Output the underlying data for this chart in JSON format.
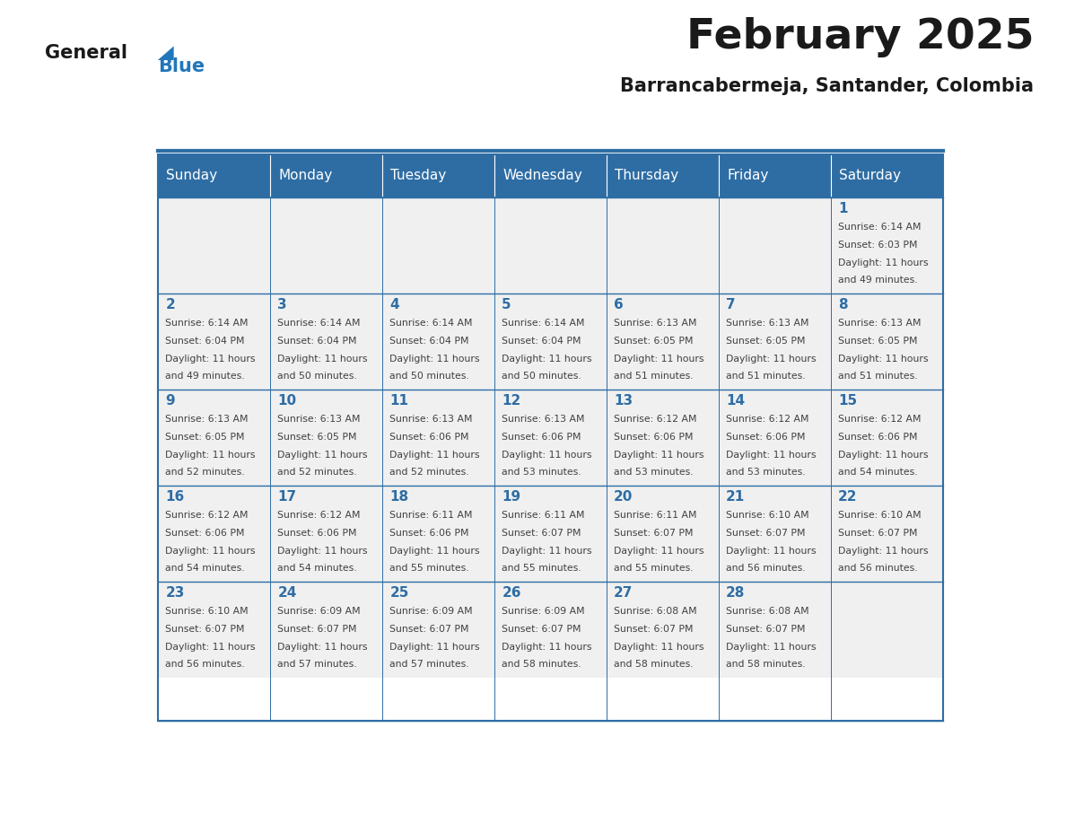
{
  "title": "February 2025",
  "subtitle": "Barrancabermeja, Santander, Colombia",
  "header_bg": "#2E6DA4",
  "header_text": "#FFFFFF",
  "cell_bg_light": "#F0F0F0",
  "border_color": "#2E6DA4",
  "day_headers": [
    "Sunday",
    "Monday",
    "Tuesday",
    "Wednesday",
    "Thursday",
    "Friday",
    "Saturday"
  ],
  "title_color": "#1a1a1a",
  "subtitle_color": "#1a1a1a",
  "day_num_color": "#2E6DA4",
  "cell_text_color": "#404040",
  "logo_general_color": "#1a1a1a",
  "logo_blue_color": "#2277BB",
  "weeks": [
    [
      {
        "day": "",
        "info": ""
      },
      {
        "day": "",
        "info": ""
      },
      {
        "day": "",
        "info": ""
      },
      {
        "day": "",
        "info": ""
      },
      {
        "day": "",
        "info": ""
      },
      {
        "day": "",
        "info": ""
      },
      {
        "day": "1",
        "info": "Sunrise: 6:14 AM\nSunset: 6:03 PM\nDaylight: 11 hours\nand 49 minutes."
      }
    ],
    [
      {
        "day": "2",
        "info": "Sunrise: 6:14 AM\nSunset: 6:04 PM\nDaylight: 11 hours\nand 49 minutes."
      },
      {
        "day": "3",
        "info": "Sunrise: 6:14 AM\nSunset: 6:04 PM\nDaylight: 11 hours\nand 50 minutes."
      },
      {
        "day": "4",
        "info": "Sunrise: 6:14 AM\nSunset: 6:04 PM\nDaylight: 11 hours\nand 50 minutes."
      },
      {
        "day": "5",
        "info": "Sunrise: 6:14 AM\nSunset: 6:04 PM\nDaylight: 11 hours\nand 50 minutes."
      },
      {
        "day": "6",
        "info": "Sunrise: 6:13 AM\nSunset: 6:05 PM\nDaylight: 11 hours\nand 51 minutes."
      },
      {
        "day": "7",
        "info": "Sunrise: 6:13 AM\nSunset: 6:05 PM\nDaylight: 11 hours\nand 51 minutes."
      },
      {
        "day": "8",
        "info": "Sunrise: 6:13 AM\nSunset: 6:05 PM\nDaylight: 11 hours\nand 51 minutes."
      }
    ],
    [
      {
        "day": "9",
        "info": "Sunrise: 6:13 AM\nSunset: 6:05 PM\nDaylight: 11 hours\nand 52 minutes."
      },
      {
        "day": "10",
        "info": "Sunrise: 6:13 AM\nSunset: 6:05 PM\nDaylight: 11 hours\nand 52 minutes."
      },
      {
        "day": "11",
        "info": "Sunrise: 6:13 AM\nSunset: 6:06 PM\nDaylight: 11 hours\nand 52 minutes."
      },
      {
        "day": "12",
        "info": "Sunrise: 6:13 AM\nSunset: 6:06 PM\nDaylight: 11 hours\nand 53 minutes."
      },
      {
        "day": "13",
        "info": "Sunrise: 6:12 AM\nSunset: 6:06 PM\nDaylight: 11 hours\nand 53 minutes."
      },
      {
        "day": "14",
        "info": "Sunrise: 6:12 AM\nSunset: 6:06 PM\nDaylight: 11 hours\nand 53 minutes."
      },
      {
        "day": "15",
        "info": "Sunrise: 6:12 AM\nSunset: 6:06 PM\nDaylight: 11 hours\nand 54 minutes."
      }
    ],
    [
      {
        "day": "16",
        "info": "Sunrise: 6:12 AM\nSunset: 6:06 PM\nDaylight: 11 hours\nand 54 minutes."
      },
      {
        "day": "17",
        "info": "Sunrise: 6:12 AM\nSunset: 6:06 PM\nDaylight: 11 hours\nand 54 minutes."
      },
      {
        "day": "18",
        "info": "Sunrise: 6:11 AM\nSunset: 6:06 PM\nDaylight: 11 hours\nand 55 minutes."
      },
      {
        "day": "19",
        "info": "Sunrise: 6:11 AM\nSunset: 6:07 PM\nDaylight: 11 hours\nand 55 minutes."
      },
      {
        "day": "20",
        "info": "Sunrise: 6:11 AM\nSunset: 6:07 PM\nDaylight: 11 hours\nand 55 minutes."
      },
      {
        "day": "21",
        "info": "Sunrise: 6:10 AM\nSunset: 6:07 PM\nDaylight: 11 hours\nand 56 minutes."
      },
      {
        "day": "22",
        "info": "Sunrise: 6:10 AM\nSunset: 6:07 PM\nDaylight: 11 hours\nand 56 minutes."
      }
    ],
    [
      {
        "day": "23",
        "info": "Sunrise: 6:10 AM\nSunset: 6:07 PM\nDaylight: 11 hours\nand 56 minutes."
      },
      {
        "day": "24",
        "info": "Sunrise: 6:09 AM\nSunset: 6:07 PM\nDaylight: 11 hours\nand 57 minutes."
      },
      {
        "day": "25",
        "info": "Sunrise: 6:09 AM\nSunset: 6:07 PM\nDaylight: 11 hours\nand 57 minutes."
      },
      {
        "day": "26",
        "info": "Sunrise: 6:09 AM\nSunset: 6:07 PM\nDaylight: 11 hours\nand 58 minutes."
      },
      {
        "day": "27",
        "info": "Sunrise: 6:08 AM\nSunset: 6:07 PM\nDaylight: 11 hours\nand 58 minutes."
      },
      {
        "day": "28",
        "info": "Sunrise: 6:08 AM\nSunset: 6:07 PM\nDaylight: 11 hours\nand 58 minutes."
      },
      {
        "day": "",
        "info": ""
      }
    ]
  ]
}
